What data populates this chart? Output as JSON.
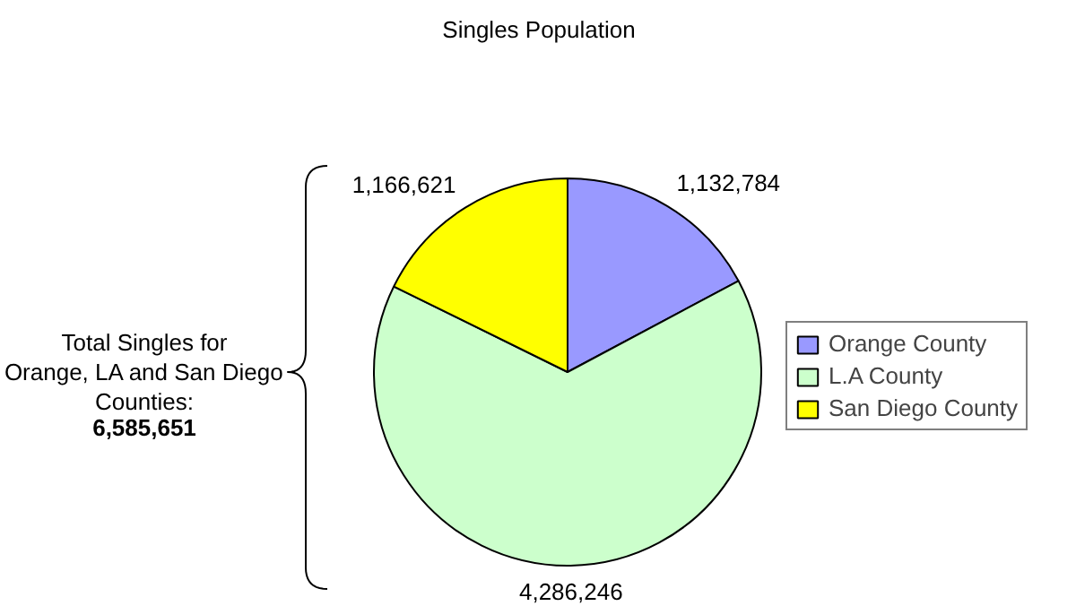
{
  "chart_data": {
    "type": "pie",
    "title": "Singles Population",
    "categories": [
      "Orange County",
      "L.A County",
      "San Diego County"
    ],
    "values": [
      1132784,
      4286246,
      1166621
    ],
    "colors": [
      "#9999ff",
      "#ccffcc",
      "#ffff00"
    ],
    "value_labels": [
      "1,132,784",
      "4,286,246",
      "1,166,621"
    ],
    "legend": "right",
    "annotations": [
      "Total Singles for Orange, LA and San Diego Counties:",
      "6,585,651"
    ]
  }
}
